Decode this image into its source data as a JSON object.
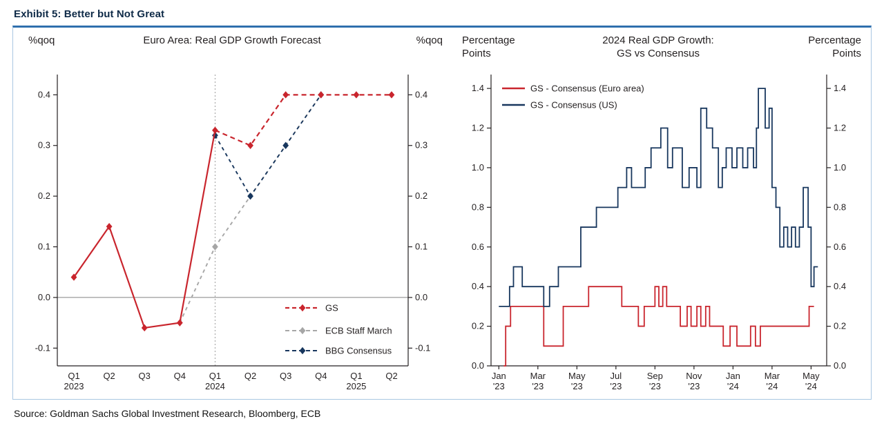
{
  "exhibit": {
    "title": "Exhibit 5: Better but Not Great"
  },
  "source": "Source: Goldman Sachs Global Investment Research, Bloomberg, ECB",
  "colors": {
    "gs_red": "#c9252d",
    "navy": "#17365d",
    "gray": "#a6a6a6",
    "axis": "#231f20",
    "zero_line": "#808080",
    "divider": "#9c9c9c"
  },
  "chart_data": [
    {
      "type": "line",
      "title": "Euro Area: Real GDP Growth Forecast",
      "y_unit_left": "%qoq",
      "y_unit_right": "%qoq",
      "categories": [
        "Q1",
        "Q2",
        "Q3",
        "Q4",
        "Q1",
        "Q2",
        "Q3",
        "Q4",
        "Q1",
        "Q2"
      ],
      "category_years": {
        "0": "2023",
        "4": "2024",
        "8": "2025"
      },
      "ylim": [
        -0.135,
        0.44
      ],
      "yticks": [
        -0.1,
        0.0,
        0.1,
        0.2,
        0.3,
        0.4
      ],
      "zero_line": 0.0,
      "forecast_divider_index": 4,
      "series": [
        {
          "name": "ECB Staff March",
          "color": "#a6a6a6",
          "dash": "5,5",
          "width": 1.9,
          "values": [
            null,
            null,
            null,
            -0.05,
            0.1,
            0.2,
            0.3,
            0.4,
            null,
            null
          ],
          "marker": "diamond",
          "marker_indices": [
            4
          ]
        },
        {
          "name": "BBG Consensus",
          "color": "#17365d",
          "dash": "5,5",
          "width": 1.9,
          "values": [
            null,
            null,
            null,
            null,
            0.32,
            0.2,
            0.3,
            0.4,
            null,
            null
          ],
          "marker": "diamond"
        },
        {
          "name": "GS",
          "color": "#c9252d",
          "dash": "7,5",
          "width": 2.2,
          "values": [
            0.04,
            0.14,
            -0.06,
            -0.05,
            0.33,
            0.3,
            0.4,
            0.4,
            0.4,
            0.4
          ],
          "solid_until_index": 4,
          "marker": "diamond"
        }
      ],
      "legend_order": [
        "GS",
        "ECB Staff March",
        "BBG Consensus"
      ],
      "legend_position": "bottom-right-inside"
    },
    {
      "type": "step-line",
      "title": "2024 Real GDP Growth:\nGS vs Consensus",
      "y_unit_left": "Percentage\nPoints",
      "y_unit_right": "Percentage\nPoints",
      "ylim": [
        0,
        1.47
      ],
      "yticks": [
        0.0,
        0.2,
        0.4,
        0.6,
        0.8,
        1.0,
        1.2,
        1.4
      ],
      "xlim": [
        -0.4,
        16.8
      ],
      "xticks": [
        {
          "pos": 0,
          "label": "Jan\n'23"
        },
        {
          "pos": 2,
          "label": "Mar\n'23"
        },
        {
          "pos": 4,
          "label": "May\n'23"
        },
        {
          "pos": 6,
          "label": "Jul\n'23"
        },
        {
          "pos": 8,
          "label": "Sep\n'23"
        },
        {
          "pos": 10,
          "label": "Nov\n'23"
        },
        {
          "pos": 12,
          "label": "Jan\n'24"
        },
        {
          "pos": 14,
          "label": "Mar\n'24"
        },
        {
          "pos": 16,
          "label": "May\n'24"
        }
      ],
      "series": [
        {
          "name": "GS - Consensus (Euro area)",
          "color": "#c9252d",
          "width": 1.8,
          "points": [
            [
              0.25,
              0.0
            ],
            [
              0.35,
              0.2
            ],
            [
              0.6,
              0.3
            ],
            [
              2.3,
              0.1
            ],
            [
              3.3,
              0.3
            ],
            [
              4.6,
              0.4
            ],
            [
              6.3,
              0.3
            ],
            [
              7.15,
              0.2
            ],
            [
              7.45,
              0.3
            ],
            [
              8.0,
              0.4
            ],
            [
              8.2,
              0.3
            ],
            [
              8.4,
              0.4
            ],
            [
              8.6,
              0.3
            ],
            [
              9.3,
              0.2
            ],
            [
              9.65,
              0.3
            ],
            [
              9.85,
              0.2
            ],
            [
              10.15,
              0.3
            ],
            [
              10.35,
              0.2
            ],
            [
              10.6,
              0.3
            ],
            [
              10.8,
              0.2
            ],
            [
              11.5,
              0.1
            ],
            [
              11.85,
              0.2
            ],
            [
              12.2,
              0.1
            ],
            [
              12.9,
              0.2
            ],
            [
              13.15,
              0.1
            ],
            [
              13.4,
              0.2
            ],
            [
              15.9,
              0.3
            ],
            [
              16.15,
              0.3
            ]
          ]
        },
        {
          "name": "GS - Consensus (US)",
          "color": "#17365d",
          "width": 1.8,
          "points": [
            [
              0.0,
              0.3
            ],
            [
              0.55,
              0.4
            ],
            [
              0.75,
              0.5
            ],
            [
              1.2,
              0.4
            ],
            [
              2.3,
              0.3
            ],
            [
              2.6,
              0.4
            ],
            [
              3.05,
              0.5
            ],
            [
              4.2,
              0.7
            ],
            [
              5.0,
              0.8
            ],
            [
              6.1,
              0.9
            ],
            [
              6.55,
              1.0
            ],
            [
              6.8,
              0.9
            ],
            [
              7.5,
              1.0
            ],
            [
              7.8,
              1.1
            ],
            [
              8.3,
              1.2
            ],
            [
              8.65,
              1.0
            ],
            [
              8.9,
              1.1
            ],
            [
              9.4,
              0.9
            ],
            [
              9.75,
              1.0
            ],
            [
              10.15,
              0.9
            ],
            [
              10.35,
              1.3
            ],
            [
              10.65,
              1.2
            ],
            [
              10.95,
              1.1
            ],
            [
              11.25,
              0.9
            ],
            [
              11.45,
              1.0
            ],
            [
              11.65,
              1.1
            ],
            [
              11.95,
              1.0
            ],
            [
              12.2,
              1.1
            ],
            [
              12.5,
              1.0
            ],
            [
              12.75,
              1.1
            ],
            [
              13.05,
              1.0
            ],
            [
              13.2,
              1.2
            ],
            [
              13.3,
              1.4
            ],
            [
              13.65,
              1.2
            ],
            [
              13.85,
              1.3
            ],
            [
              14.0,
              0.9
            ],
            [
              14.2,
              0.8
            ],
            [
              14.4,
              0.6
            ],
            [
              14.6,
              0.7
            ],
            [
              14.8,
              0.6
            ],
            [
              15.0,
              0.7
            ],
            [
              15.2,
              0.6
            ],
            [
              15.4,
              0.7
            ],
            [
              15.6,
              0.9
            ],
            [
              15.85,
              0.7
            ],
            [
              16.0,
              0.4
            ],
            [
              16.15,
              0.5
            ],
            [
              16.35,
              0.5
            ]
          ]
        }
      ],
      "legend_position": "top-left-inside"
    }
  ]
}
